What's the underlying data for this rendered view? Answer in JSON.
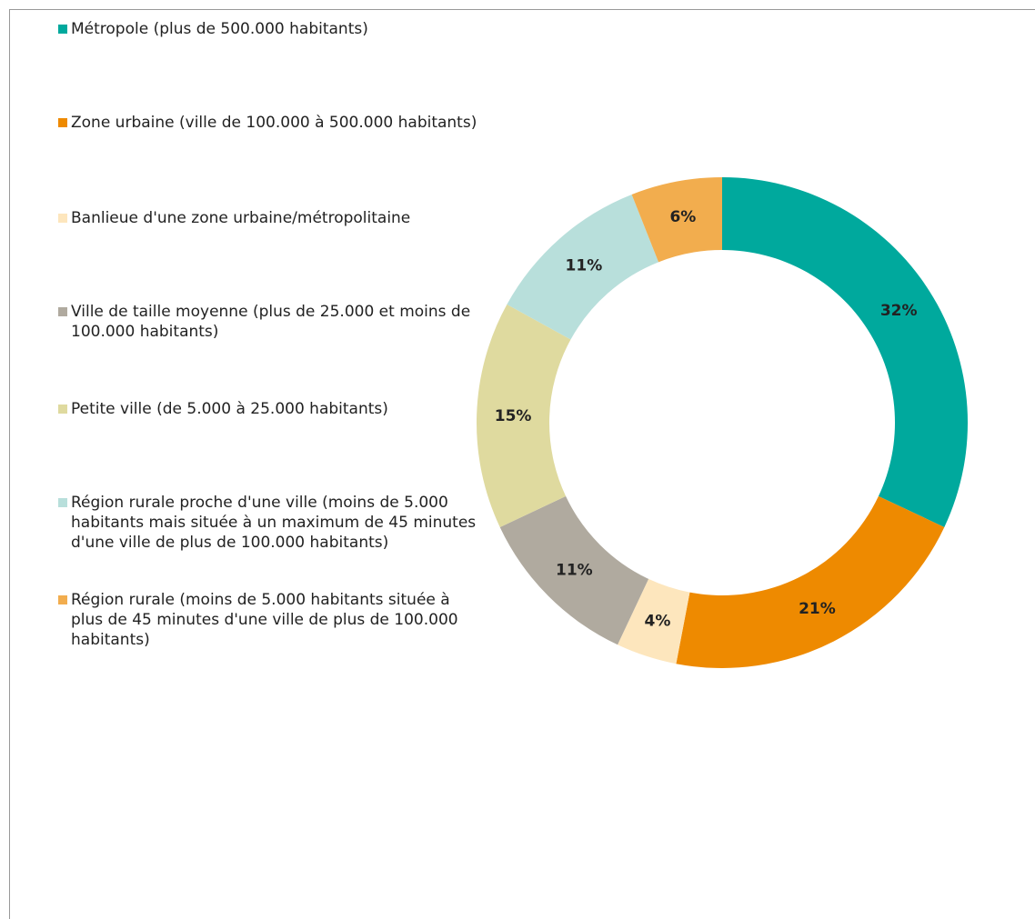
{
  "chart_data": {
    "type": "donut",
    "categories": [
      "Métropole (plus de 500.000 habitants)",
      "Zone urbaine  (ville de 100.000 à 500.000 habitants)",
      "Banlieue d'une zone urbaine/métropolitaine",
      "Ville de taille moyenne (plus de 25.000 et moins de 100.000 habitants)",
      "Petite ville (de 5.000 à 25.000 habitants)",
      "Région rurale proche d'une ville (moins de 5.000 habitants mais située à un maximum de 45 minutes d'une ville de plus de 100.000 habitants)",
      "Région rurale (moins de 5.000 habitants située à plus de 45 minutes d'une ville de plus de 100.000 habitants)"
    ],
    "values": [
      32,
      21,
      4,
      11,
      15,
      11,
      6
    ],
    "value_labels": [
      "32%",
      "21%",
      "4%",
      "11%",
      "15%",
      "11%",
      "6%"
    ],
    "colors": [
      "#00a99d",
      "#ee8a00",
      "#fde6bd",
      "#b0aa9f",
      "#dfda9f",
      "#b8dfdb",
      "#f2ad4e"
    ]
  }
}
